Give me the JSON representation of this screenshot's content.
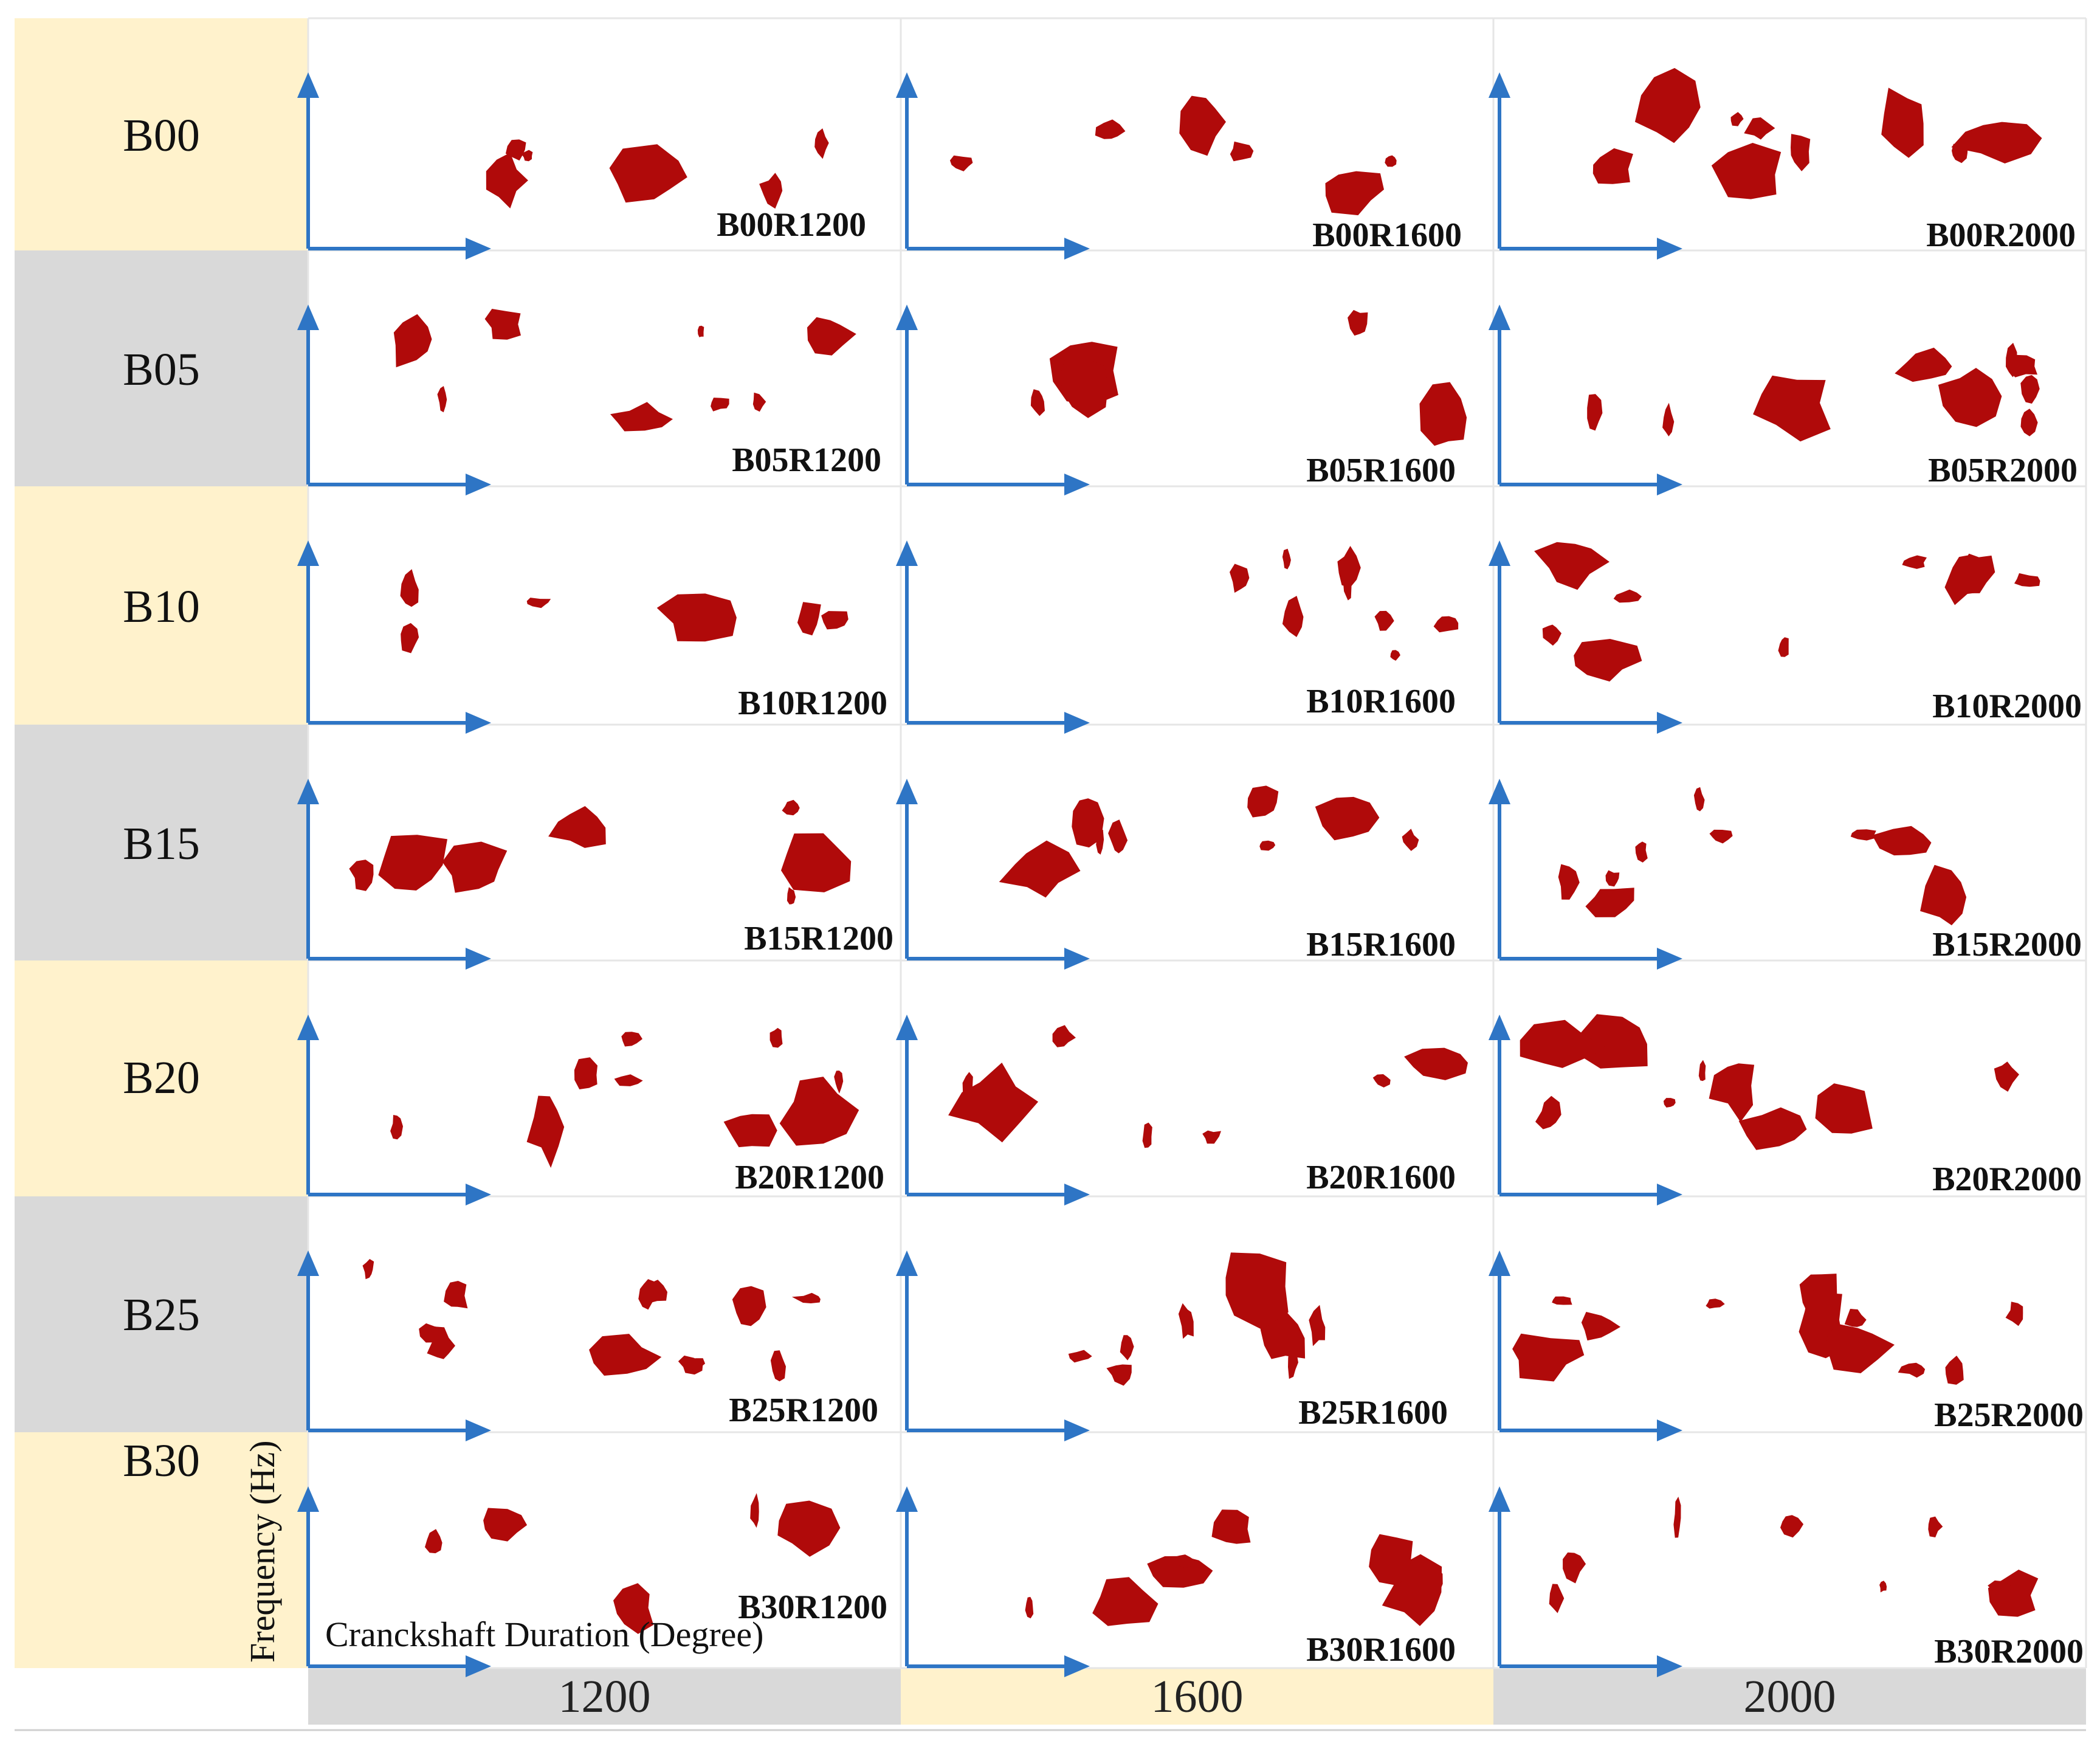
{
  "chart_data": {
    "type": "heatmap",
    "title": "",
    "xlabel": "Cranckshaft Duration (Degree)",
    "ylabel": "Frequency (Hz)",
    "rows": [
      "B00",
      "B05",
      "B10",
      "B15",
      "B20",
      "B25",
      "B30"
    ],
    "columns": [
      "1200",
      "1600",
      "2000"
    ],
    "panels": [
      [
        "B00R1200",
        "B00R1600",
        "B00R2000"
      ],
      [
        "B05R1200",
        "B05R1600",
        "B05R2000"
      ],
      [
        "B10R1200",
        "B10R1600",
        "B10R2000"
      ],
      [
        "B15R1200",
        "B15R1600",
        "B15R2000"
      ],
      [
        "B20R1200",
        "B20R1600",
        "B20R2000"
      ],
      [
        "B25R1200",
        "B25R1600",
        "B25R2000"
      ],
      [
        "B30R1200",
        "B30R1600",
        "B30R2000"
      ]
    ],
    "row_band_colors": [
      "#fff2cc",
      "#d9d9d9"
    ],
    "column_band_colors": [
      "#d9d9d9",
      "#fff2cc",
      "#d9d9d9"
    ],
    "axis_color": "#2e75c5",
    "blob_color": "#b00a0a",
    "blob_counts": [
      [
        6,
        6,
        10
      ],
      [
        8,
        5,
        10
      ],
      [
        6,
        8,
        10
      ],
      [
        7,
        8,
        9
      ],
      [
        10,
        7,
        9
      ],
      [
        12,
        8,
        11
      ],
      [
        6,
        9,
        8
      ]
    ]
  }
}
